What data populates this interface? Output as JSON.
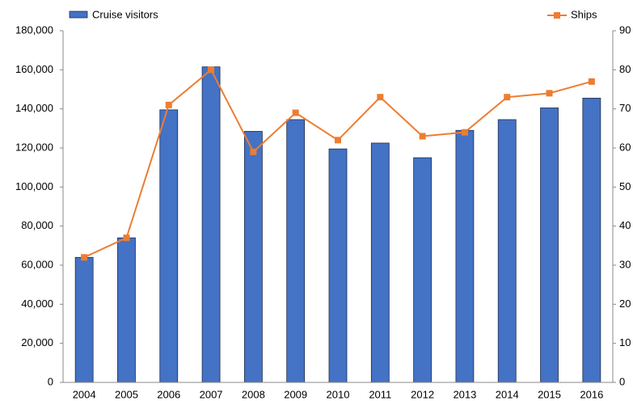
{
  "chart_data": {
    "type": "bar-line",
    "categories": [
      "2004",
      "2005",
      "2006",
      "2007",
      "2008",
      "2009",
      "2010",
      "2011",
      "2012",
      "2013",
      "2014",
      "2015",
      "2016"
    ],
    "series": [
      {
        "name": "Cruise visitors",
        "type": "bar",
        "color": "#4472c4",
        "values": [
          64000,
          74000,
          139500,
          161500,
          128500,
          134500,
          119500,
          122500,
          115000,
          129000,
          134500,
          140500,
          145500
        ]
      },
      {
        "name": "Ships",
        "type": "line",
        "axis": "y2",
        "color": "#ed7d31",
        "values": [
          32,
          37,
          71,
          80,
          59,
          69,
          62,
          73,
          63,
          64,
          73,
          74,
          77
        ]
      }
    ],
    "ylim": [
      0,
      180000
    ],
    "yticks": [
      {
        "value": 0,
        "label": "0"
      },
      {
        "value": 20000,
        "label": "20,000"
      },
      {
        "value": 40000,
        "label": "40,000"
      },
      {
        "value": 60000,
        "label": "60,000"
      },
      {
        "value": 80000,
        "label": "80,000"
      },
      {
        "value": 100000,
        "label": "100,000"
      },
      {
        "value": 120000,
        "label": "120,000"
      },
      {
        "value": 140000,
        "label": "140,000"
      },
      {
        "value": 160000,
        "label": "160,000"
      },
      {
        "value": 180000,
        "label": "180,000"
      }
    ],
    "y2lim": [
      0,
      90
    ],
    "y2ticks": [
      0,
      10,
      20,
      30,
      40,
      50,
      60,
      70,
      80,
      90
    ],
    "grid": false
  }
}
